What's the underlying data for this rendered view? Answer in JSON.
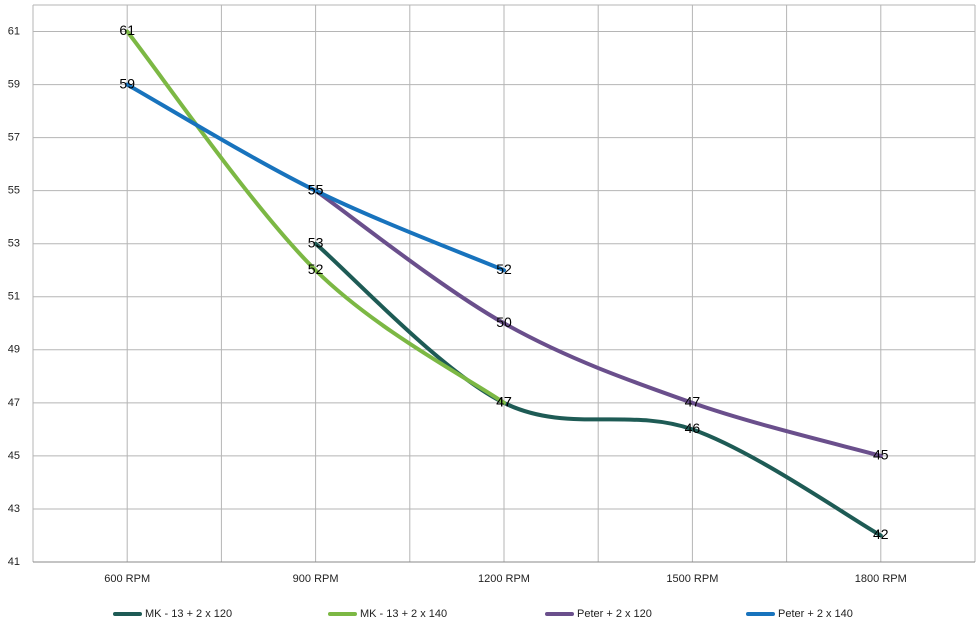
{
  "chart_data": {
    "type": "line",
    "categories": [
      "600 RPM",
      "900 RPM",
      "1200 RPM",
      "1500 RPM",
      "1800 RPM"
    ],
    "series": [
      {
        "name": "MK - 13 + 2 x 120",
        "color": "#1e5b55",
        "values": [
          null,
          53,
          47,
          46,
          42
        ]
      },
      {
        "name": "MK - 13 + 2 x 140",
        "color": "#7cb844",
        "values": [
          61,
          52,
          47,
          null,
          null
        ]
      },
      {
        "name": "Peter + 2 x 120",
        "color": "#6a4f8c",
        "values": [
          null,
          55,
          50,
          47,
          45
        ]
      },
      {
        "name": "Peter + 2 x 140",
        "color": "#1873bd",
        "values": [
          59,
          55,
          52,
          null,
          null
        ]
      }
    ],
    "ylim": [
      41,
      62
    ],
    "yticks": [
      41,
      43,
      45,
      47,
      49,
      51,
      53,
      55,
      57,
      59,
      61
    ],
    "grid": true,
    "smooth": true,
    "legend": "bottom"
  }
}
